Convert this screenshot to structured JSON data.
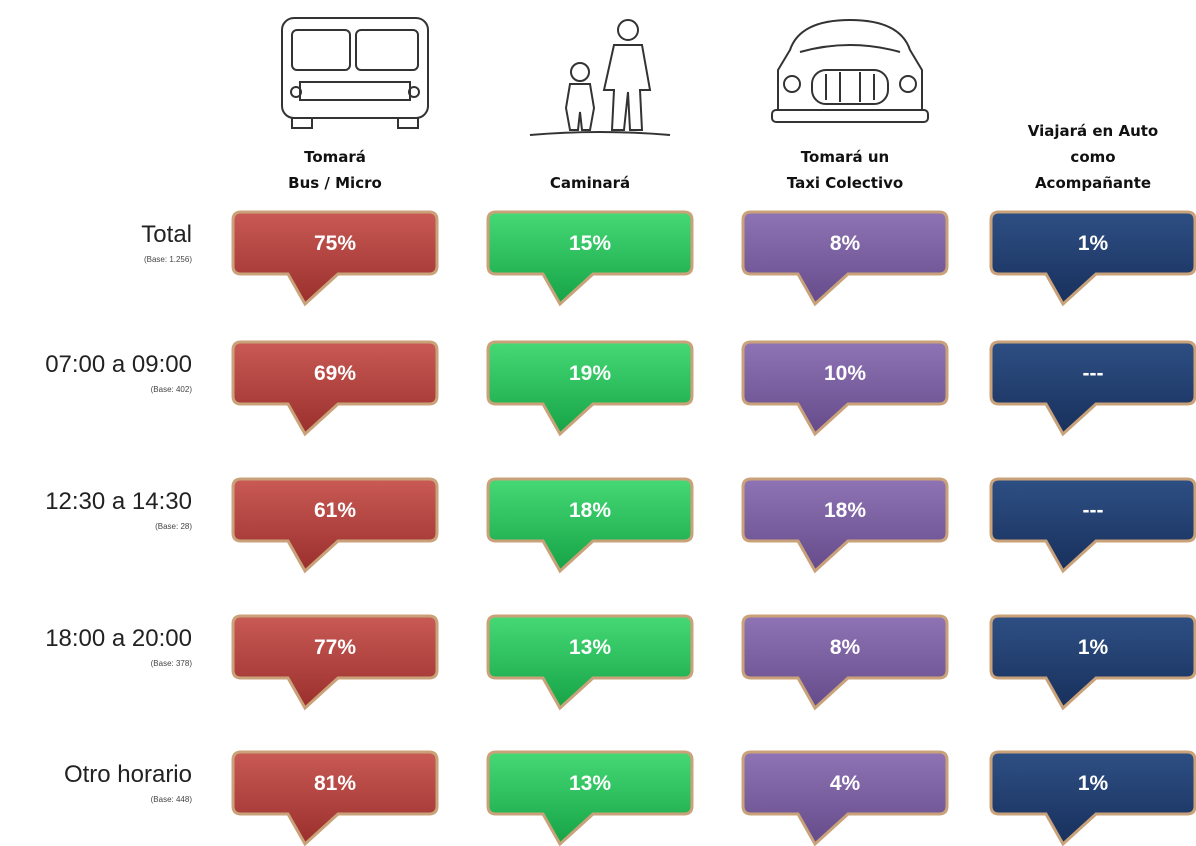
{
  "columns": [
    {
      "lines": [
        "Tomará",
        "Bus / Micro"
      ]
    },
    {
      "lines": [
        "Caminará"
      ]
    },
    {
      "lines": [
        "Tomará un",
        "Taxi Colectivo"
      ]
    },
    {
      "lines": [
        "Viajará en Auto",
        "como",
        "Acompañante"
      ]
    }
  ],
  "rows": [
    {
      "label": "Total",
      "base": "(Base: 1.256)",
      "values": [
        "75%",
        "15%",
        "8%",
        "1%"
      ]
    },
    {
      "label": "07:00 a 09:00",
      "base": "(Base: 402)",
      "values": [
        "69%",
        "19%",
        "10%",
        "---"
      ]
    },
    {
      "label": "12:30 a 14:30",
      "base": "(Base: 28)",
      "values": [
        "61%",
        "18%",
        "18%",
        "---"
      ]
    },
    {
      "label": "18:00 a 20:00",
      "base": "(Base: 378)",
      "values": [
        "77%",
        "13%",
        "8%",
        "1%"
      ]
    },
    {
      "label": "Otro horario",
      "base": "(Base: 448)",
      "values": [
        "81%",
        "13%",
        "4%",
        "1%"
      ]
    }
  ]
}
